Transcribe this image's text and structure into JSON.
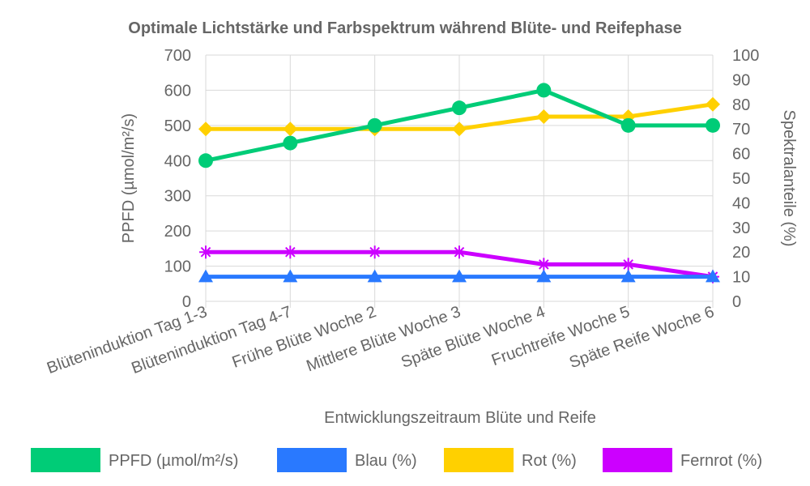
{
  "chart_data": {
    "type": "line",
    "title": "Optimale Lichtstärke und Farbspektrum während Blüte- und Reifephase",
    "xlabel": "Entwicklungszeitraum Blüte und Reife",
    "ylabel_left": "PPFD (µmol/m²/s)",
    "ylabel_right": "Spektralanteile (%)",
    "ylim_left": [
      0,
      700
    ],
    "ylim_right": [
      0,
      100
    ],
    "yticks_left": [
      "0",
      "100",
      "200",
      "300",
      "400",
      "500",
      "600",
      "700"
    ],
    "yticks_right": [
      "0",
      "10",
      "20",
      "30",
      "40",
      "50",
      "60",
      "70",
      "80",
      "90",
      "100"
    ],
    "grid": true,
    "legend_position": "bottom",
    "categories": [
      "Blüteninduktion Tag 1-3",
      "Blüteninduktion Tag 4-7",
      "Frühe Blüte Woche 2",
      "Mittlere Blüte Woche 3",
      "Späte Blüte Woche 4",
      "Fruchtreife Woche 5",
      "Späte Reife Woche 6"
    ],
    "series": [
      {
        "name": "PPFD (µmol/m²/s)",
        "axis": "left",
        "color": "#00cc77",
        "marker": "circle",
        "values": [
          400,
          450,
          500,
          550,
          600,
          500,
          500
        ]
      },
      {
        "name": "Blau (%)",
        "axis": "right",
        "color": "#2979ff",
        "marker": "triangle",
        "values": [
          10,
          10,
          10,
          10,
          10,
          10,
          10
        ]
      },
      {
        "name": "Rot (%)",
        "axis": "right",
        "color": "#ffd000",
        "marker": "diamond",
        "values": [
          70,
          70,
          70,
          70,
          75,
          75,
          80
        ]
      },
      {
        "name": "Fernrot (%)",
        "axis": "right",
        "color": "#cc00ff",
        "marker": "star",
        "values": [
          20,
          20,
          20,
          20,
          15,
          15,
          10
        ]
      }
    ]
  }
}
